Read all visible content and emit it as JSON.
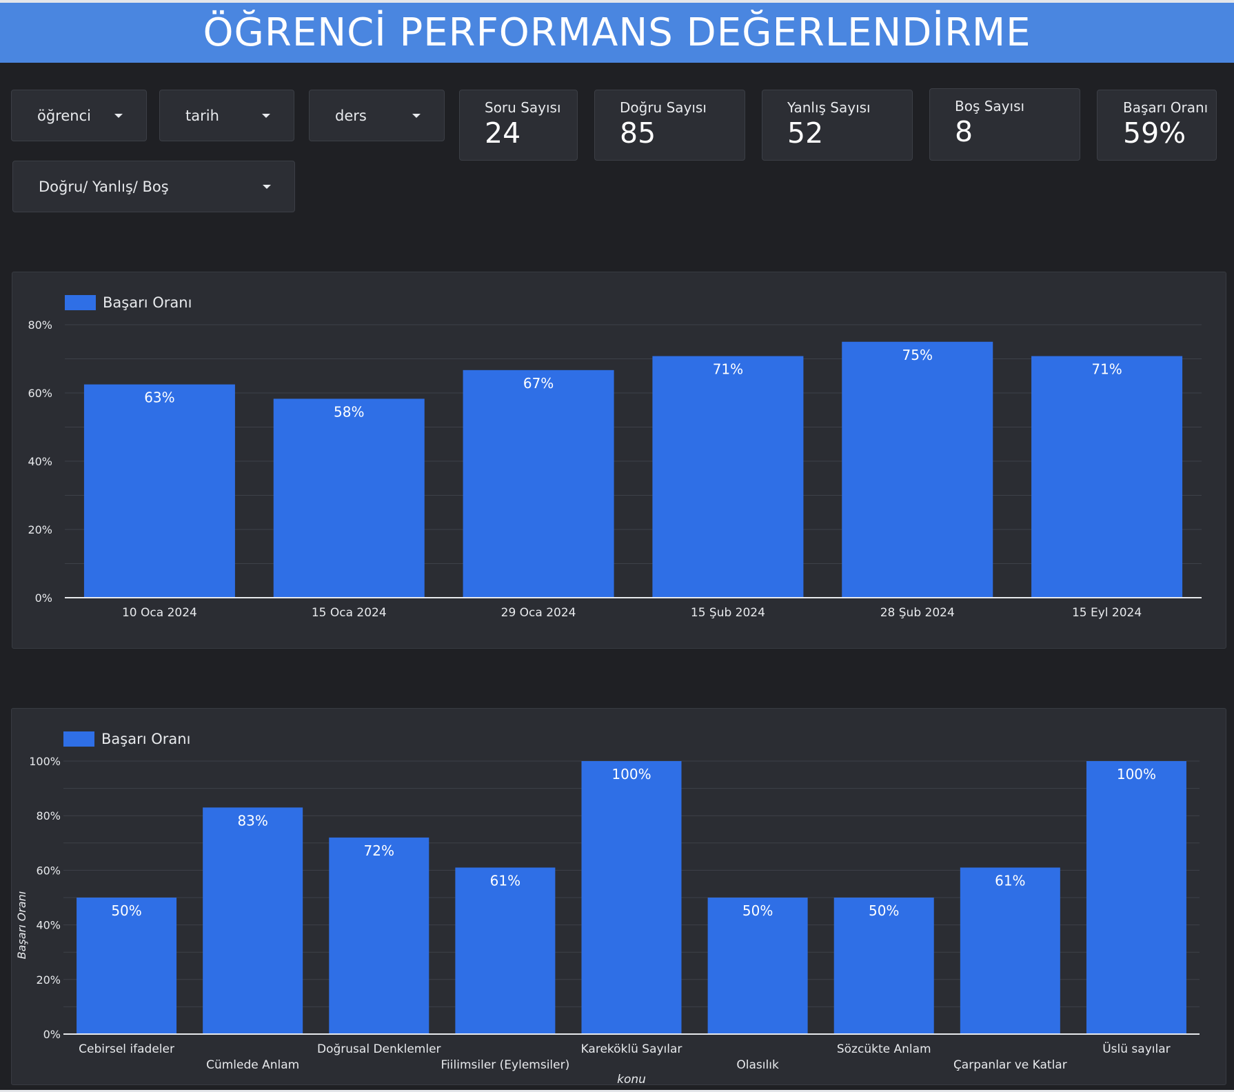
{
  "header": {
    "title": "ÖĞRENCİ PERFORMANS DEĞERLENDİRME"
  },
  "filters": {
    "ogrenci": "öğrenci",
    "tarih": "tarih",
    "ders": "ders",
    "dyb": "Doğru/ Yanlış/ Boş"
  },
  "kpis": [
    {
      "label": "Soru Sayısı",
      "value": "24"
    },
    {
      "label": "Doğru Sayısı",
      "value": "85"
    },
    {
      "label": "Yanlış Sayısı",
      "value": "52"
    },
    {
      "label": "Boş Sayısı",
      "value": "8"
    },
    {
      "label": "Başarı Oranı",
      "value": "59%"
    }
  ],
  "colors": {
    "header": "#4a86e0",
    "bar": "#2f6fe6",
    "background": "#1f2024",
    "panel": "#2b2d33"
  },
  "chart_data": [
    {
      "type": "bar",
      "legend": "Başarı Oranı",
      "categories": [
        "10 Oca 2024",
        "15 Oca 2024",
        "29 Oca 2024",
        "15 Şub 2024",
        "28 Şub 2024",
        "15 Eyl 2024"
      ],
      "values": [
        62.5,
        58.3,
        66.7,
        70.8,
        75,
        70.8
      ],
      "data_labels": [
        "63%",
        "58%",
        "67%",
        "71%",
        "75%",
        "71%"
      ],
      "yticks": [
        "0%",
        "20%",
        "40%",
        "60%",
        "80%"
      ],
      "ylim": [
        0,
        80
      ],
      "xlabel": "",
      "ylabel": "",
      "legend_position": "top-left",
      "grid": true
    },
    {
      "type": "bar",
      "legend": "Başarı Oranı",
      "categories": [
        "Cebirsel ifadeler",
        "Cümlede Anlam",
        "Doğrusal Denklemler",
        "Fiilimsiler (Eylemsiler)",
        "Kareköklü Sayılar",
        "Olasılık",
        "Sözcükte Anlam",
        "Çarpanlar ve Katlar",
        "Üslü sayılar"
      ],
      "values": [
        50,
        83,
        72,
        61,
        100,
        50,
        50,
        61,
        100
      ],
      "data_labels": [
        "50%",
        "83%",
        "72%",
        "61%",
        "100%",
        "50%",
        "50%",
        "61%",
        "100%"
      ],
      "yticks": [
        "0%",
        "20%",
        "40%",
        "60%",
        "80%",
        "100%"
      ],
      "ylim": [
        0,
        100
      ],
      "xlabel": "konu",
      "ylabel": "Başarı Oranı",
      "legend_position": "top-left",
      "grid": true
    }
  ]
}
